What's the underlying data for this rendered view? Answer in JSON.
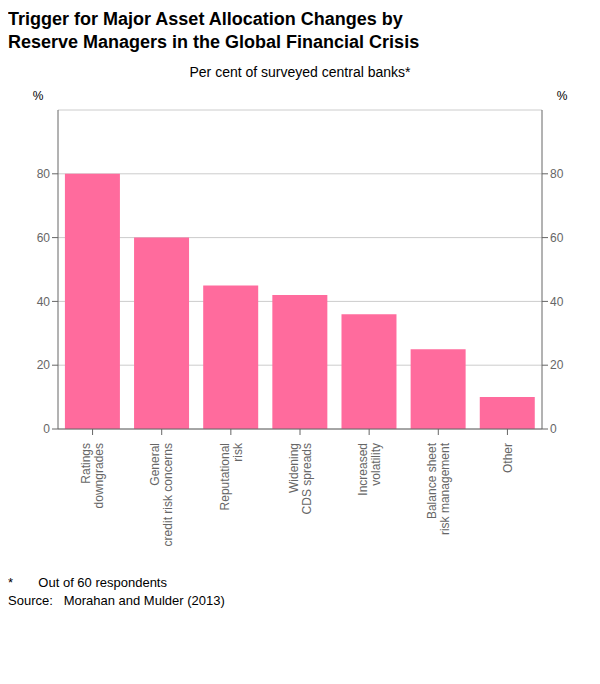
{
  "chart_data": {
    "type": "bar",
    "title": "Trigger for Major Asset Allocation Changes by\nReserve Managers in the Global Financial Crisis",
    "subtitle": "Per cent of surveyed central banks*",
    "categories": [
      "Ratings\ndowngrades",
      "General\ncredit risk concerns",
      "Reputational\nrisk",
      "Widening\nCDS spreads",
      "Increased\nvolatility",
      "Balance sheet\nrisk management",
      "Other"
    ],
    "values": [
      80,
      60,
      45,
      42,
      36,
      25,
      10
    ],
    "color": "#FF6B9D",
    "ylim": [
      0,
      100
    ],
    "yticks": [
      0,
      20,
      40,
      60,
      80
    ],
    "y2lim": [
      0,
      100
    ],
    "y2ticks": [
      0,
      20,
      40,
      60,
      80
    ],
    "ylabel": "%",
    "y2label": "%",
    "grid": true,
    "annotations": [
      "*       Out of 60 respondents",
      "Source:   Morahan and Mulder (2013)"
    ]
  }
}
